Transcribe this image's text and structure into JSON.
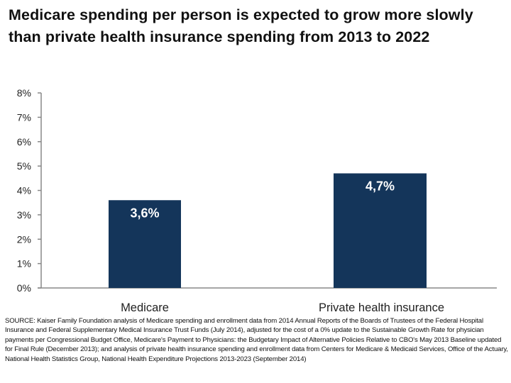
{
  "title": "Medicare spending per person is expected to grow more slowly than private health insurance spending from 2013 to 2022",
  "source": "SOURCE: Kaiser Family Foundation analysis of Medicare spending and enrollment data from 2014 Annual Reports of the Boards of Trustees of the Federal Hospital Insurance and Federal Supplementary Medical Insurance Trust Funds (July 2014), adjusted for the cost of a 0% update to the Sustainable Growth Rate for physician payments per Congressional Budget Office, Medicare's Payment to Physicians: the Budgetary Impact of Alternative Policies Relative to CBO's May 2013 Baseline updated for Final Rule (December 2013); and analysis of private health insurance spending and enrollment data from Centers for Medicare & Medicaid Services, Office of the Actuary, National Health Statistics Group, National Health Expenditure Projections 2013-2023 (September 2014)",
  "chart_data": {
    "type": "bar",
    "title": "Medicare spending per person is expected to grow more slowly than private health insurance spending from 2013 to 2022",
    "categories": [
      "Medicare",
      "Private health insurance"
    ],
    "values": [
      3.6,
      4.7
    ],
    "data_labels": [
      "3,6%",
      "4,7%"
    ],
    "ylim": [
      0,
      8
    ],
    "yticks": [
      "0%",
      "1%",
      "2%",
      "3%",
      "4%",
      "5%",
      "6%",
      "7%",
      "8%"
    ],
    "xlabel": "",
    "ylabel": "",
    "grid": false,
    "legend": "none",
    "bar_color": "#14355a",
    "label_color": "#ffffff"
  }
}
